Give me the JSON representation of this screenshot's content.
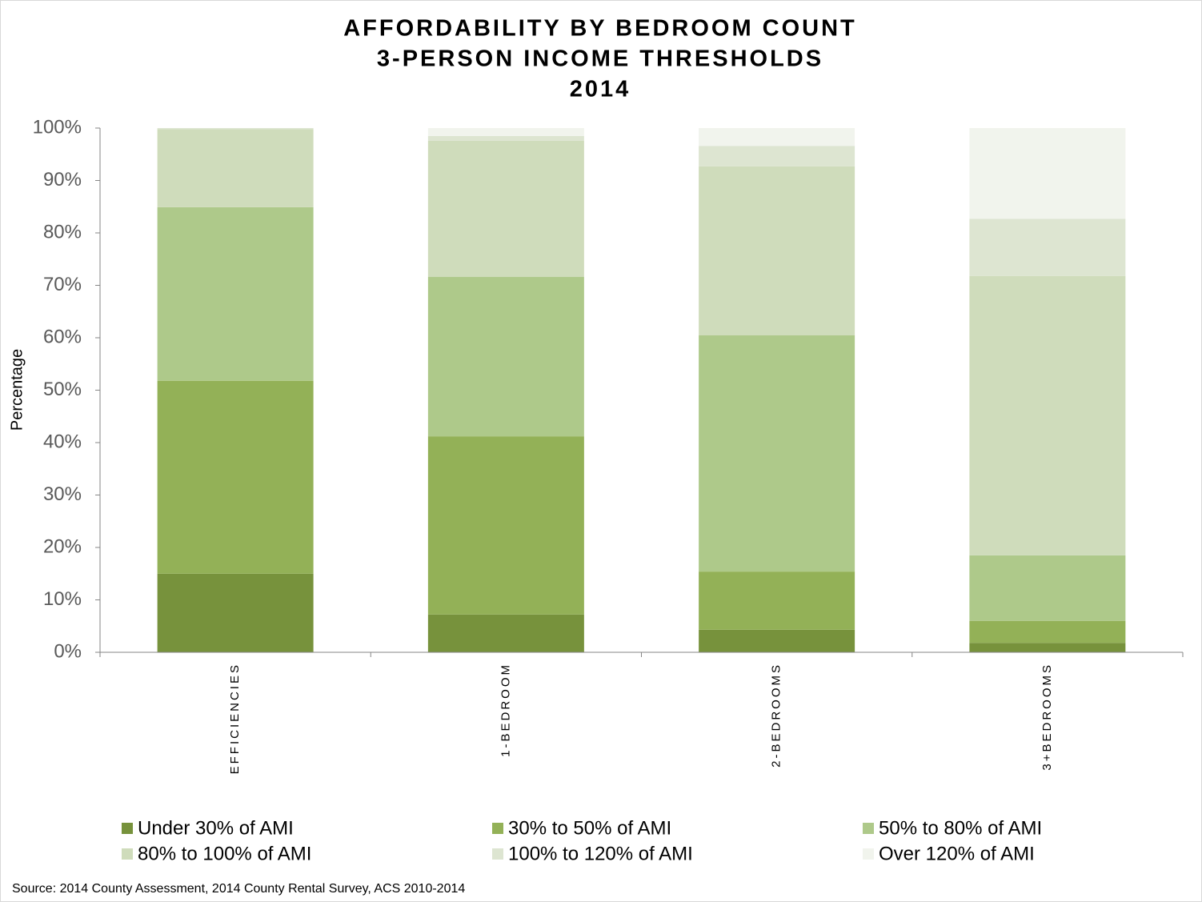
{
  "chart_data": {
    "type": "stacked_bar",
    "title": [
      "AFFORDABILITY BY BEDROOM COUNT",
      "3-PERSON INCOME THRESHOLDS",
      "2014"
    ],
    "y_label": "Percentage",
    "source": "Source: 2014 County Assessment, 2014 County Rental Survey, ACS 2010-2014",
    "categories": [
      "EFFICIENCIES",
      "1-BEDROOM",
      "2-BEDROOMS",
      "3+BEDROOMS"
    ],
    "series": [
      {
        "name": "Under 30% of AMI",
        "color": "#77923c",
        "values": [
          15.0,
          7.2,
          4.3,
          1.8
        ]
      },
      {
        "name": "30% to 50% of AMI",
        "color": "#93b157",
        "values": [
          36.8,
          34.0,
          11.1,
          4.2
        ]
      },
      {
        "name": "50% to 80% of AMI",
        "color": "#aec98a",
        "values": [
          33.1,
          30.4,
          45.1,
          12.5
        ]
      },
      {
        "name": "80% to 100% of AMI",
        "color": "#cfdcbb",
        "values": [
          14.9,
          26.0,
          32.2,
          53.3
        ]
      },
      {
        "name": "100% to 120% of AMI",
        "color": "#dde5d1",
        "values": [
          0.2,
          0.9,
          3.9,
          10.9
        ]
      },
      {
        "name": "Over 120% of AMI",
        "color": "#f1f4ed",
        "values": [
          0,
          1.5,
          3.4,
          17.3
        ]
      }
    ],
    "ylim": [
      0,
      100
    ],
    "yticks": [
      {
        "value": 0,
        "label": "0%"
      },
      {
        "value": 10,
        "label": "10%"
      },
      {
        "value": 20,
        "label": "20%"
      },
      {
        "value": 30,
        "label": "30%"
      },
      {
        "value": 40,
        "label": "40%"
      },
      {
        "value": 50,
        "label": "50%"
      },
      {
        "value": 60,
        "label": "60%"
      },
      {
        "value": 70,
        "label": "70%"
      },
      {
        "value": 80,
        "label": "80%"
      },
      {
        "value": 90,
        "label": "90%"
      },
      {
        "value": 100,
        "label": "100%"
      }
    ],
    "legend": "bottom"
  }
}
